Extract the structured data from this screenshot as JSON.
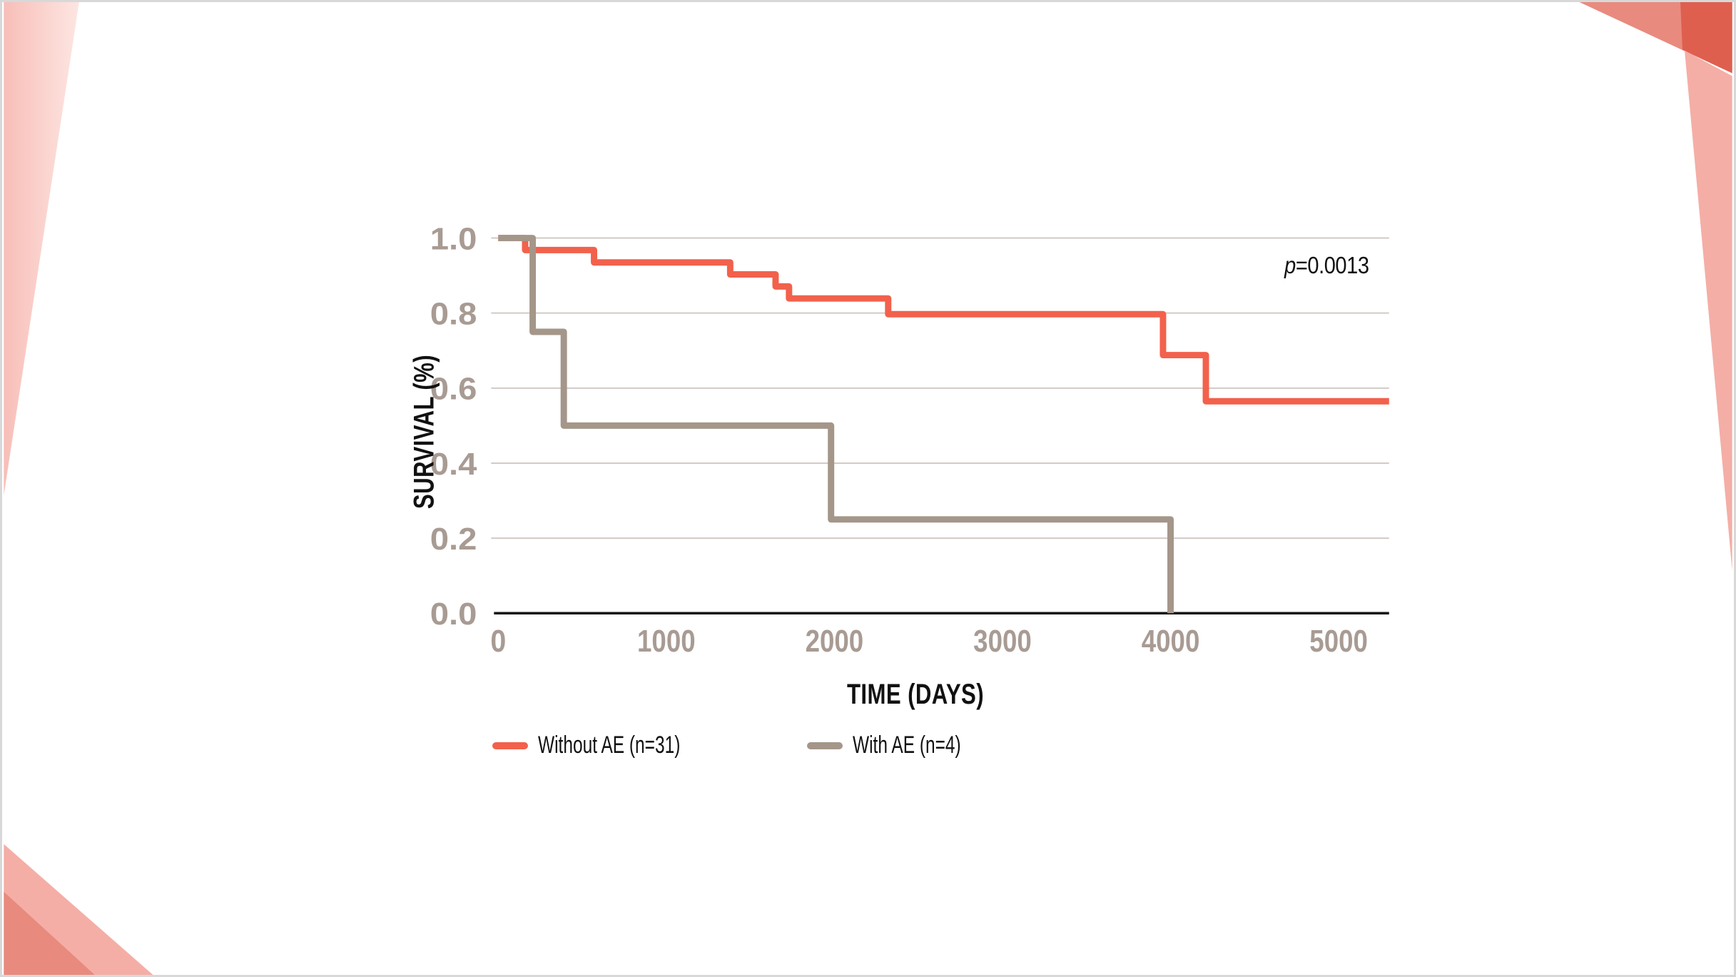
{
  "slide": {
    "background": "#ffffff",
    "frame_color": "#d8d8d8",
    "decor": {
      "pink_wedge_from": "#f8beb8",
      "pink_wedge_to": "#fde6e2",
      "pink": "#f4aea6",
      "salmon": "#e98a7e",
      "red": "#df5f4f"
    }
  },
  "chart_data": {
    "type": "line",
    "subtype": "kaplan-meier-step",
    "title": "",
    "xlabel": "TIME (DAYS)",
    "ylabel": "SURVIVAL (%)",
    "xlim": [
      0,
      5300
    ],
    "ylim": [
      0.0,
      1.0
    ],
    "x_ticks": [
      0,
      1000,
      2000,
      3000,
      4000,
      5000
    ],
    "x_tick_labels": [
      "0",
      "1000",
      "2000",
      "3000",
      "4000",
      "5000"
    ],
    "y_ticks": [
      0.0,
      0.2,
      0.4,
      0.6,
      0.8,
      1.0
    ],
    "y_tick_labels": [
      "0.0",
      "0.2",
      "0.4",
      "0.6",
      "0.8",
      "1.0"
    ],
    "grid": "horizontal",
    "legend_position": "bottom",
    "gridline_color": "#d2cac5",
    "axis_color": "#111111",
    "tick_color": "#a89b93",
    "annotation": {
      "text_italic": "p",
      "text_rest": "=0.0013"
    },
    "series": [
      {
        "name": "Without AE (n=31)",
        "color": "#f2614c",
        "points": [
          [
            0,
            1.0
          ],
          [
            160,
            0.968
          ],
          [
            570,
            0.935
          ],
          [
            1380,
            0.903
          ],
          [
            1650,
            0.871
          ],
          [
            1730,
            0.839
          ],
          [
            2320,
            0.797
          ],
          [
            3955,
            0.688
          ],
          [
            4210,
            0.565
          ],
          [
            5300,
            0.565
          ]
        ]
      },
      {
        "name": "With AE (n=4)",
        "color": "#a49689",
        "points": [
          [
            0,
            1.0
          ],
          [
            205,
            0.75
          ],
          [
            390,
            0.5
          ],
          [
            1980,
            0.25
          ],
          [
            4000,
            0.0
          ]
        ]
      }
    ]
  }
}
